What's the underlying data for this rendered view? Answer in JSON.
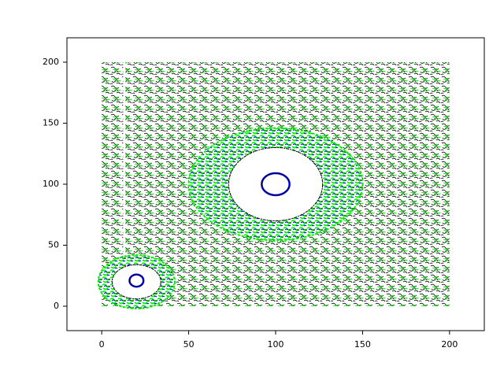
{
  "chart_data": {
    "type": "contour",
    "xlim": [
      -20,
      220
    ],
    "ylim": [
      -20,
      220
    ],
    "xticks": [
      0,
      50,
      100,
      150,
      200
    ],
    "yticks": [
      0,
      50,
      100,
      150,
      200
    ],
    "extent": {
      "x": [
        0,
        200
      ],
      "y": [
        0,
        200
      ]
    },
    "colors": [
      "#000000",
      "#00ee00",
      "#0000ff"
    ],
    "bands": [
      {
        "x": 100,
        "y": 100,
        "rx": 50,
        "ry": 46
      },
      {
        "x": 20,
        "y": 20,
        "rx": 22,
        "ry": 22
      }
    ],
    "holes": [
      {
        "x": 100,
        "y": 100,
        "rx": 27,
        "ry": 30
      },
      {
        "x": 20,
        "y": 20,
        "rx": 14,
        "ry": 14
      }
    ],
    "rings": [
      {
        "x": 100,
        "y": 100,
        "rx": 8,
        "ry": 9
      },
      {
        "x": 20,
        "y": 21,
        "rx": 4,
        "ry": 5
      }
    ],
    "gaps": [
      {
        "x": 13,
        "y0": 30,
        "y1": 200
      }
    ]
  }
}
